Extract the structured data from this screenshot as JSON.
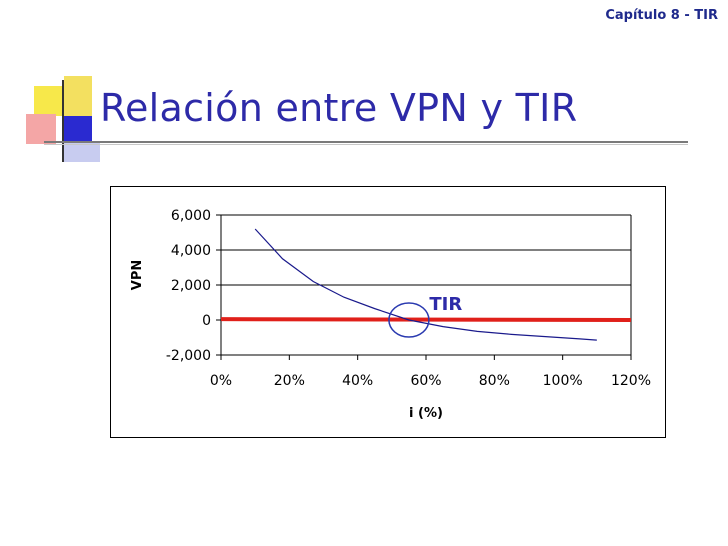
{
  "header": {
    "chapter": "Capítulo 8 - TIR"
  },
  "slide": {
    "title": "Relación entre VPN y TIR"
  },
  "colors": {
    "accent": "#1f2a8c",
    "title": "#2d2aa8",
    "curve": "#1a1a8c",
    "zero_line": "#e0201a",
    "circle": "#2a3ab0"
  },
  "chart_data": {
    "type": "line",
    "xlabel": "i (%)",
    "ylabel": "VPN",
    "x_ticks": [
      "0%",
      "20%",
      "40%",
      "60%",
      "80%",
      "100%",
      "120%"
    ],
    "y_ticks": [
      "6,000",
      "4,000",
      "2,000",
      "0",
      "-2,000"
    ],
    "xlim": [
      0,
      1.2
    ],
    "ylim": [
      -2000,
      6000
    ],
    "grid": "horizontal",
    "annotation": "TIR",
    "series": [
      {
        "x": [
          0.1,
          0.18,
          0.27,
          0.36,
          0.45,
          0.55,
          0.65,
          0.75,
          0.85,
          0.95,
          1.05,
          1.1
        ],
        "y": [
          5200,
          3500,
          2200,
          1300,
          650,
          0,
          -380,
          -650,
          -820,
          -950,
          -1080,
          -1150
        ]
      },
      {
        "x": [
          0,
          1.2
        ],
        "y": [
          50,
          0
        ]
      }
    ]
  }
}
